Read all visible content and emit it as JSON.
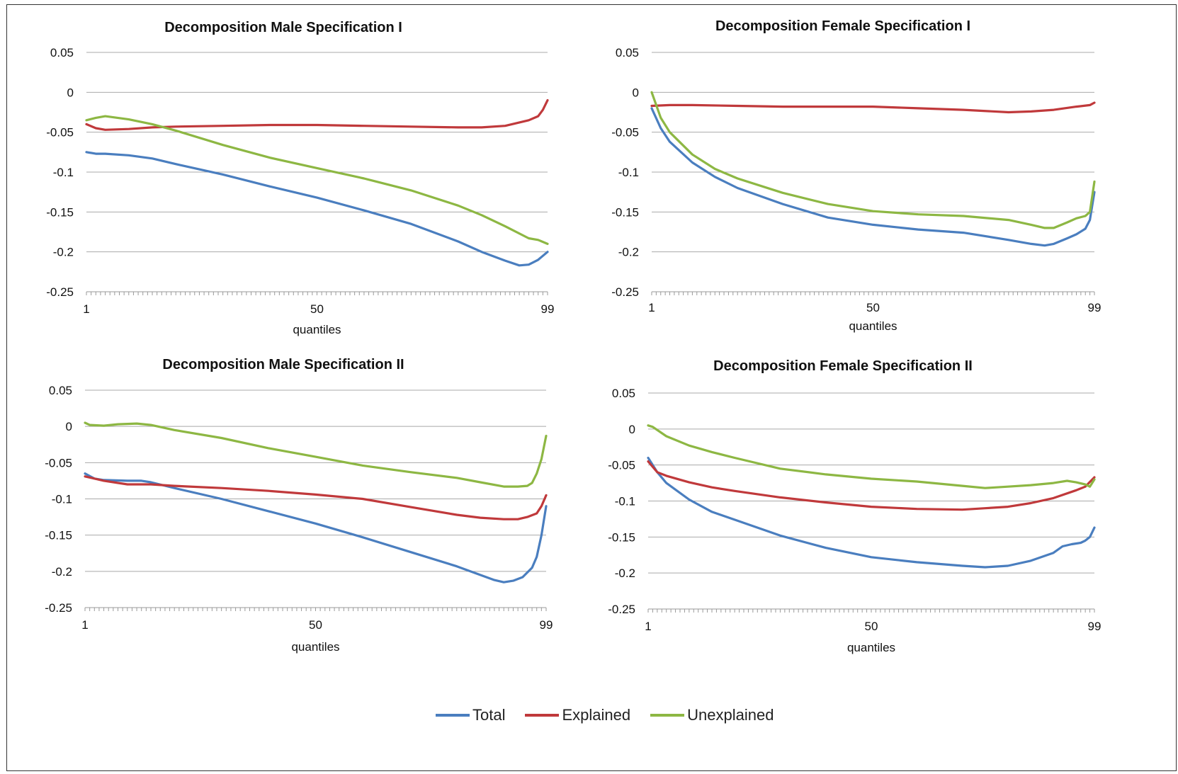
{
  "colors": {
    "Total": "#4a7ebf",
    "Explained": "#c0393b",
    "Unexplained": "#8db743",
    "grid": "#a9a9a9",
    "axis": "#9a9a9a"
  },
  "legend": [
    {
      "name": "Total",
      "color": "#4a7ebf"
    },
    {
      "name": "Explained",
      "color": "#c0393b"
    },
    {
      "name": "Unexplained",
      "color": "#8db743"
    }
  ],
  "chart_data": [
    {
      "type": "line",
      "title": "Decomposition Male Specification I",
      "xlabel": "quantiles",
      "ylabel": "",
      "xlim": [
        1,
        99
      ],
      "ylim": [
        -0.25,
        0.05
      ],
      "xticks": [
        "1",
        "50",
        "99"
      ],
      "yticks": [
        "0.05",
        "0",
        "-0.05",
        "-0.1",
        "-0.15",
        "-0.2",
        "-0.25"
      ],
      "grid": true,
      "series": [
        {
          "name": "Total",
          "x": [
            1,
            3,
            5,
            10,
            15,
            20,
            30,
            40,
            50,
            60,
            70,
            80,
            85,
            90,
            93,
            95,
            97,
            99
          ],
          "values": [
            -0.075,
            -0.077,
            -0.077,
            -0.079,
            -0.083,
            -0.09,
            -0.103,
            -0.118,
            -0.132,
            -0.148,
            -0.165,
            -0.187,
            -0.2,
            -0.211,
            -0.217,
            -0.216,
            -0.21,
            -0.2
          ]
        },
        {
          "name": "Explained",
          "x": [
            1,
            3,
            5,
            10,
            15,
            20,
            30,
            40,
            50,
            60,
            70,
            80,
            85,
            90,
            95,
            97,
            98,
            99
          ],
          "values": [
            -0.04,
            -0.045,
            -0.047,
            -0.046,
            -0.044,
            -0.043,
            -0.042,
            -0.041,
            -0.041,
            -0.042,
            -0.043,
            -0.044,
            -0.044,
            -0.042,
            -0.035,
            -0.03,
            -0.022,
            -0.01
          ]
        },
        {
          "name": "Unexplained",
          "x": [
            1,
            3,
            5,
            10,
            15,
            20,
            30,
            40,
            50,
            60,
            70,
            80,
            85,
            90,
            95,
            97,
            99
          ],
          "values": [
            -0.035,
            -0.032,
            -0.03,
            -0.034,
            -0.04,
            -0.048,
            -0.066,
            -0.082,
            -0.095,
            -0.108,
            -0.123,
            -0.142,
            -0.154,
            -0.168,
            -0.183,
            -0.185,
            -0.19
          ]
        }
      ]
    },
    {
      "type": "line",
      "title": "Decomposition Female Specification I",
      "xlabel": "quantiles",
      "ylabel": "",
      "xlim": [
        1,
        99
      ],
      "ylim": [
        -0.25,
        0.05
      ],
      "xticks": [
        "1",
        "50",
        "99"
      ],
      "yticks": [
        "0.05",
        "0",
        "-0.05",
        "-0.1",
        "-0.15",
        "-0.2",
        "-0.25"
      ],
      "grid": true,
      "series": [
        {
          "name": "Total",
          "x": [
            1,
            3,
            5,
            10,
            15,
            20,
            30,
            40,
            50,
            60,
            70,
            80,
            85,
            88,
            90,
            93,
            95,
            97,
            98,
            99
          ],
          "values": [
            -0.02,
            -0.045,
            -0.062,
            -0.088,
            -0.106,
            -0.12,
            -0.14,
            -0.157,
            -0.166,
            -0.172,
            -0.176,
            -0.185,
            -0.19,
            -0.192,
            -0.19,
            -0.183,
            -0.178,
            -0.171,
            -0.16,
            -0.125
          ]
        },
        {
          "name": "Explained",
          "x": [
            1,
            5,
            10,
            20,
            30,
            40,
            50,
            60,
            70,
            80,
            85,
            90,
            95,
            98,
            99
          ],
          "values": [
            -0.017,
            -0.016,
            -0.016,
            -0.017,
            -0.018,
            -0.018,
            -0.018,
            -0.02,
            -0.022,
            -0.025,
            -0.024,
            -0.022,
            -0.018,
            -0.016,
            -0.013
          ]
        },
        {
          "name": "Unexplained",
          "x": [
            1,
            3,
            5,
            10,
            15,
            20,
            30,
            40,
            50,
            60,
            70,
            80,
            85,
            88,
            90,
            93,
            95,
            97,
            98,
            99
          ],
          "values": [
            0.0,
            -0.032,
            -0.05,
            -0.078,
            -0.096,
            -0.108,
            -0.126,
            -0.14,
            -0.149,
            -0.153,
            -0.155,
            -0.16,
            -0.166,
            -0.17,
            -0.17,
            -0.163,
            -0.158,
            -0.155,
            -0.15,
            -0.112
          ]
        }
      ]
    },
    {
      "type": "line",
      "title": "Decomposition Male Specification II",
      "xlabel": "quantiles",
      "ylabel": "",
      "xlim": [
        1,
        99
      ],
      "ylim": [
        -0.25,
        0.05
      ],
      "xticks": [
        "1",
        "50",
        "99"
      ],
      "yticks": [
        "0.05",
        "0",
        "-0.05",
        "-0.1",
        "-0.15",
        "-0.2",
        "-0.25"
      ],
      "grid": true,
      "series": [
        {
          "name": "Total",
          "x": [
            1,
            3,
            5,
            10,
            13,
            15,
            20,
            30,
            40,
            50,
            60,
            70,
            80,
            85,
            88,
            90,
            92,
            94,
            96,
            97,
            98,
            99
          ],
          "values": [
            -0.065,
            -0.072,
            -0.074,
            -0.075,
            -0.075,
            -0.077,
            -0.085,
            -0.1,
            -0.117,
            -0.134,
            -0.153,
            -0.173,
            -0.193,
            -0.205,
            -0.212,
            -0.215,
            -0.213,
            -0.208,
            -0.195,
            -0.18,
            -0.15,
            -0.11
          ]
        },
        {
          "name": "Explained",
          "x": [
            1,
            5,
            10,
            15,
            20,
            30,
            40,
            50,
            60,
            70,
            80,
            85,
            90,
            93,
            95,
            97,
            98,
            99
          ],
          "values": [
            -0.069,
            -0.075,
            -0.08,
            -0.08,
            -0.082,
            -0.085,
            -0.089,
            -0.094,
            -0.1,
            -0.111,
            -0.122,
            -0.126,
            -0.128,
            -0.128,
            -0.125,
            -0.12,
            -0.11,
            -0.095
          ]
        },
        {
          "name": "Unexplained",
          "x": [
            1,
            2,
            5,
            8,
            12,
            15,
            20,
            30,
            40,
            50,
            60,
            70,
            80,
            85,
            90,
            93,
            95,
            96,
            97,
            98,
            99
          ],
          "values": [
            0.005,
            0.002,
            0.001,
            0.003,
            0.004,
            0.002,
            -0.005,
            -0.016,
            -0.03,
            -0.042,
            -0.054,
            -0.063,
            -0.071,
            -0.077,
            -0.083,
            -0.083,
            -0.082,
            -0.078,
            -0.065,
            -0.045,
            -0.013
          ]
        }
      ]
    },
    {
      "type": "line",
      "title": "Decomposition Female Specification II",
      "xlabel": "quantiles",
      "ylabel": "",
      "xlim": [
        1,
        99
      ],
      "ylim": [
        -0.25,
        0.05
      ],
      "xticks": [
        "1",
        "50",
        "99"
      ],
      "yticks": [
        "0.05",
        "0",
        "-0.05",
        "-0.1",
        "-0.15",
        "-0.2",
        "-0.25"
      ],
      "grid": true,
      "series": [
        {
          "name": "Total",
          "x": [
            1,
            3,
            5,
            10,
            15,
            20,
            30,
            40,
            50,
            60,
            70,
            75,
            80,
            85,
            90,
            92,
            94,
            96,
            97,
            98,
            99
          ],
          "values": [
            -0.04,
            -0.06,
            -0.075,
            -0.098,
            -0.115,
            -0.126,
            -0.148,
            -0.165,
            -0.178,
            -0.185,
            -0.19,
            -0.192,
            -0.19,
            -0.183,
            -0.172,
            -0.163,
            -0.16,
            -0.158,
            -0.155,
            -0.15,
            -0.137
          ]
        },
        {
          "name": "Explained",
          "x": [
            1,
            3,
            5,
            10,
            15,
            20,
            30,
            40,
            50,
            60,
            70,
            75,
            80,
            85,
            90,
            95,
            97,
            99
          ],
          "values": [
            -0.045,
            -0.06,
            -0.065,
            -0.074,
            -0.081,
            -0.086,
            -0.095,
            -0.102,
            -0.108,
            -0.111,
            -0.112,
            -0.11,
            -0.108,
            -0.103,
            -0.096,
            -0.085,
            -0.08,
            -0.067
          ]
        },
        {
          "name": "Unexplained",
          "x": [
            1,
            2,
            5,
            10,
            15,
            20,
            30,
            40,
            50,
            60,
            70,
            75,
            80,
            85,
            90,
            93,
            95,
            97,
            98,
            99
          ],
          "values": [
            0.005,
            0.003,
            -0.01,
            -0.023,
            -0.032,
            -0.04,
            -0.055,
            -0.063,
            -0.069,
            -0.073,
            -0.079,
            -0.082,
            -0.08,
            -0.078,
            -0.075,
            -0.072,
            -0.074,
            -0.077,
            -0.08,
            -0.07
          ]
        }
      ]
    }
  ]
}
